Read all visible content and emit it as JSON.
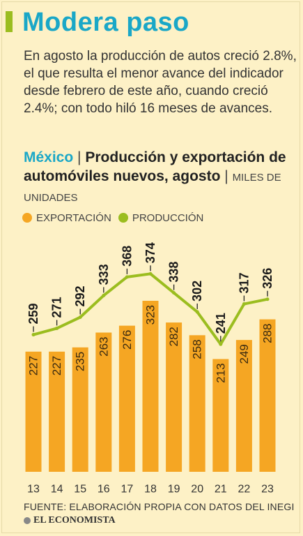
{
  "title": "Modera paso",
  "lede": "En agosto la producción de autos creció 2.8%, el que resulta el menor avance del indicador desde febrero de este año, cuando creció 2.4%; con todo hiló 16 meses de avances.",
  "chart_header": {
    "country": "México",
    "separator": "|",
    "title": "Producción y exportación de automóviles nuevos, agosto",
    "units": "MILES DE UNIDADES"
  },
  "legend": {
    "exportacion": "EXPORTACIÓN",
    "produccion": "PRODUCCIÓN"
  },
  "colors": {
    "bar": "#f5a623",
    "line": "#9bbd1f",
    "background": "#fdf1c6",
    "accent": "#1aa7c7"
  },
  "chart_data": {
    "type": "bar+line",
    "categories": [
      "13",
      "14",
      "15",
      "16",
      "17",
      "18",
      "19",
      "20",
      "21",
      "22",
      "23"
    ],
    "series": [
      {
        "name": "EXPORTACIÓN",
        "type": "bar",
        "values": [
          227,
          227,
          235,
          263,
          276,
          323,
          282,
          258,
          213,
          249,
          288
        ]
      },
      {
        "name": "PRODUCCIÓN",
        "type": "line",
        "values": [
          259,
          271,
          292,
          333,
          368,
          374,
          338,
          302,
          241,
          317,
          326
        ]
      }
    ],
    "title": "Producción y exportación de automóviles nuevos, agosto",
    "units": "MILES DE UNIDADES",
    "legend": "top-left",
    "grid": false
  },
  "source": "FUENTE: ELABORACIÓN PROPIA CON DATOS DEL INEGI",
  "brand": "EL ECONOMISTA"
}
